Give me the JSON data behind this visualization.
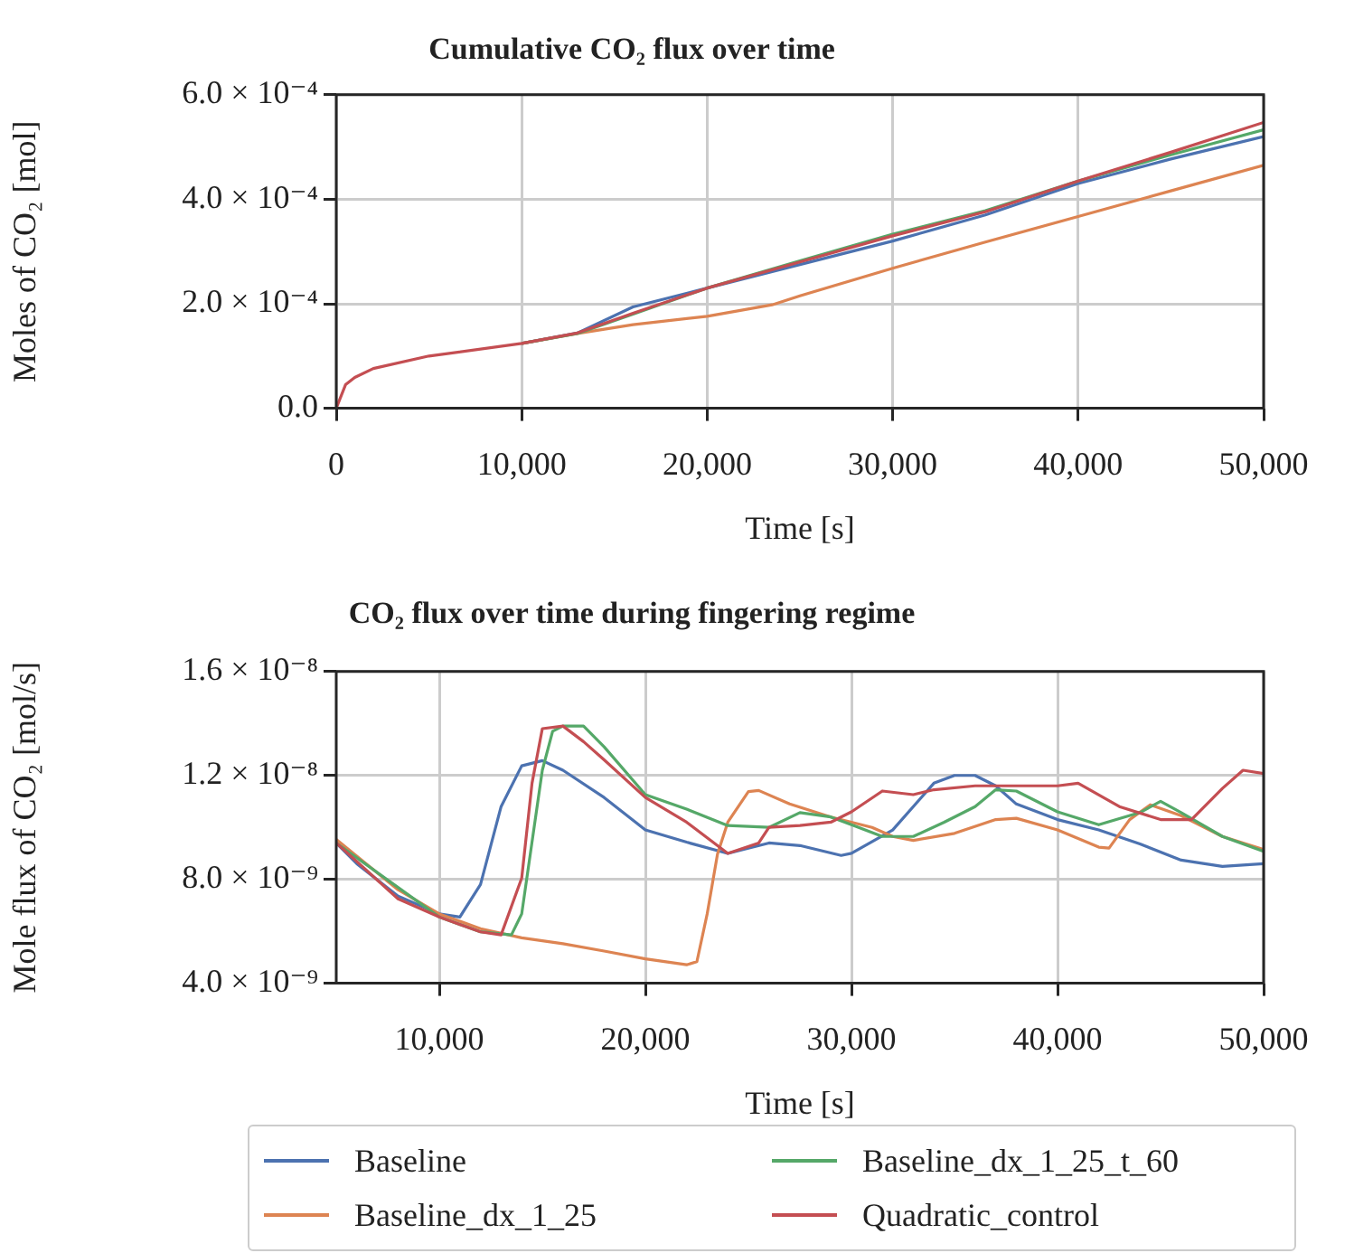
{
  "chart_data": [
    {
      "type": "line",
      "title": "Cumulative CO₂ flux over time",
      "xlabel": "Time [s]",
      "ylabel": "Moles of CO₂ [mol]",
      "xlim": [
        0,
        50000
      ],
      "xticks": [
        0,
        {
          "value": 10000,
          "label": "10,000"
        },
        {
          "value": 20000,
          "label": "20,000"
        },
        {
          "value": 30000,
          "label": "30,000"
        },
        {
          "value": 40000,
          "label": "40,000"
        },
        {
          "value": 50000,
          "label": "50,000"
        }
      ],
      "ylim": [
        0,
        0.0006
      ],
      "yticks": [
        {
          "value": 0,
          "label": "0.0"
        },
        {
          "value": 0.0002,
          "label": "2.0 × 10⁻⁴"
        },
        {
          "value": 0.0004,
          "label": "4.0 × 10⁻⁴"
        },
        {
          "value": 0.0006,
          "label": "6.0 × 10⁻⁴"
        }
      ],
      "grid": true,
      "marker": "none",
      "line_style": "solid",
      "series": [
        {
          "color": "#4c72b0",
          "x": [
            10000,
            13000,
            16000,
            20000,
            25000,
            30000,
            35000,
            40000,
            45000,
            50000
          ],
          "values": [
            0.000124,
            0.000144,
            0.000194,
            0.00023,
            0.000275,
            0.00032,
            0.00037,
            0.00043,
            0.000477,
            0.00052
          ]
        },
        {
          "color": "#dd8452",
          "x": [
            10000,
            13000,
            16000,
            20000,
            23500,
            25000,
            30000,
            35000,
            40000,
            45000,
            50000
          ],
          "values": [
            0.000124,
            0.000143,
            0.00016,
            0.000176,
            0.000198,
            0.000215,
            0.000268,
            0.000318,
            0.000367,
            0.000416,
            0.000465
          ]
        },
        {
          "color": "#55a868",
          "x": [
            10000,
            13000,
            16000,
            20000,
            25000,
            30000,
            35000,
            40000,
            45000,
            50000
          ],
          "values": [
            0.000124,
            0.000143,
            0.00018,
            0.00023,
            0.000282,
            0.000333,
            0.000378,
            0.000435,
            0.000485,
            0.000533
          ]
        },
        {
          "color": "#c44e52",
          "x": [
            0,
            500,
            1000,
            2000,
            5000,
            10000,
            13000,
            16000,
            20000,
            25000,
            30000,
            35000,
            40000,
            45000,
            50000
          ],
          "values": [
            0,
            4.5e-05,
            5.9e-05,
            7.6e-05,
            0.0001,
            0.000124,
            0.000144,
            0.000182,
            0.00023,
            0.00028,
            0.00033,
            0.000376,
            0.000435,
            0.00049,
            0.000547
          ]
        }
      ]
    },
    {
      "type": "line",
      "title": "CO₂ flux over time during fingering regime",
      "xlabel": "Time [s]",
      "ylabel": "Mole flux of CO₂ [mol/s]",
      "xlim": [
        5000,
        50000
      ],
      "xticks": [
        {
          "value": 10000,
          "label": "10,000"
        },
        {
          "value": 20000,
          "label": "20,000"
        },
        {
          "value": 30000,
          "label": "30,000"
        },
        {
          "value": 40000,
          "label": "40,000"
        },
        {
          "value": 50000,
          "label": "50,000"
        }
      ],
      "ylim": [
        4e-09,
        1.6e-08
      ],
      "yticks": [
        {
          "value": 4e-09,
          "label": "4.0 × 10⁻⁹"
        },
        {
          "value": 8e-09,
          "label": "8.0 × 10⁻⁹"
        },
        {
          "value": 1.2e-08,
          "label": "1.2 × 10⁻⁸"
        },
        {
          "value": 1.6e-08,
          "label": "1.6 × 10⁻⁸"
        }
      ],
      "grid": true,
      "legend": "bottom",
      "marker": "none",
      "line_style": "solid",
      "series": [
        {
          "name": "Baseline",
          "color": "#4c72b0",
          "x": [
            5000,
            6000,
            8000,
            10000,
            11000,
            12000,
            13000,
            14000,
            15000,
            16000,
            18000,
            20000,
            22000,
            24000,
            26000,
            27500,
            29500,
            30000,
            32000,
            34000,
            35000,
            36000,
            37000,
            38000,
            40000,
            42000,
            44000,
            46000,
            48000,
            50000
          ],
          "values": [
            9.4e-09,
            8.6e-09,
            7.35e-09,
            6.67e-09,
            6.55e-09,
            7.8e-09,
            1.08e-08,
            1.237e-08,
            1.257e-08,
            1.22e-08,
            1.115e-08,
            9.9e-09,
            9.43e-09,
            9e-09,
            9.4e-09,
            9.3e-09,
            8.92e-09,
            9e-09,
            9.9e-09,
            1.17e-08,
            1.2e-08,
            1.2e-08,
            1.16e-08,
            1.09e-08,
            1.03e-08,
            9.9e-09,
            9.36e-09,
            8.74e-09,
            8.5e-09,
            8.6e-09
          ]
        },
        {
          "name": "Baseline_dx_1_25",
          "color": "#dd8452",
          "x": [
            5000,
            8000,
            10000,
            12000,
            14000,
            16000,
            18000,
            20000,
            22000,
            22500,
            23000,
            23500,
            24000,
            25000,
            25500,
            27000,
            29000,
            30000,
            31000,
            32000,
            33000,
            35000,
            37000,
            38000,
            40000,
            42000,
            42500,
            43500,
            44500,
            46000,
            48000,
            50000
          ],
          "values": [
            9.54e-09,
            7.6e-09,
            6.67e-09,
            6.1e-09,
            5.75e-09,
            5.52e-09,
            5.24e-09,
            4.94e-09,
            4.71e-09,
            4.83e-09,
            6.67e-09,
            8.97e-09,
            1.02e-08,
            1.138e-08,
            1.142e-08,
            1.09e-08,
            1.04e-08,
            1.02e-08,
            1e-08,
            9.65e-09,
            9.5e-09,
            9.77e-09,
            1.03e-08,
            1.035e-08,
            9.9e-09,
            9.24e-09,
            9.2e-09,
            1.03e-08,
            1.087e-08,
            1.045e-08,
            9.65e-09,
            9.15e-09
          ]
        },
        {
          "name": "Baseline_dx_1_25_t_60",
          "color": "#55a868",
          "x": [
            5000,
            10000,
            12000,
            13500,
            14000,
            15000,
            15500,
            16000,
            17000,
            18000,
            20000,
            22000,
            24000,
            26000,
            27500,
            29000,
            30000,
            31500,
            33000,
            34500,
            36000,
            37000,
            38000,
            40000,
            42000,
            44000,
            45000,
            46000,
            48000,
            50000
          ],
          "values": [
            9.4e-09,
            6.55e-09,
            5.98e-09,
            5.86e-09,
            6.67e-09,
            1.22e-08,
            1.37e-08,
            1.39e-08,
            1.39e-08,
            1.31e-08,
            1.126e-08,
            1.07e-08,
            1.007e-08,
            1e-08,
            1.057e-08,
            1.04e-08,
            1.01e-08,
            9.65e-09,
            9.65e-09,
            1.02e-08,
            1.08e-08,
            1.145e-08,
            1.14e-08,
            1.06e-08,
            1.01e-08,
            1.057e-08,
            1.1e-08,
            1.057e-08,
            9.65e-09,
            9.08e-09
          ]
        },
        {
          "name": "Quadratic_control",
          "color": "#c44e52",
          "x": [
            5000,
            8000,
            10000,
            12000,
            13000,
            14000,
            14500,
            15000,
            16000,
            17000,
            18000,
            20000,
            22000,
            24000,
            25500,
            26000,
            27500,
            29000,
            30000,
            31500,
            33000,
            34000,
            36000,
            38000,
            40000,
            41000,
            43000,
            45000,
            46500,
            48000,
            49000,
            50000
          ],
          "values": [
            9.4e-09,
            7.25e-09,
            6.55e-09,
            5.98e-09,
            5.86e-09,
            8.05e-09,
            1.17e-08,
            1.38e-08,
            1.39e-08,
            1.33e-08,
            1.26e-08,
            1.115e-08,
            1.02e-08,
            9e-09,
            9.4e-09,
            1e-08,
            1.007e-08,
            1.02e-08,
            1.06e-08,
            1.14e-08,
            1.126e-08,
            1.145e-08,
            1.16e-08,
            1.16e-08,
            1.16e-08,
            1.17e-08,
            1.08e-08,
            1.03e-08,
            1.03e-08,
            1.15e-08,
            1.22e-08,
            1.207e-08
          ]
        }
      ]
    }
  ]
}
